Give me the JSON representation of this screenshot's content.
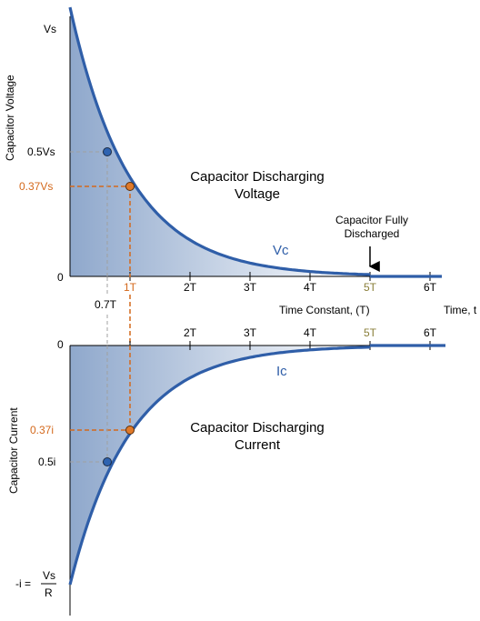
{
  "colors": {
    "curve": "#2f5ea8",
    "fill_dark": "#8fa8cc",
    "fill_light": "#ffffff",
    "highlight": "#d4691c",
    "guide_gray": "#a0a0a0",
    "five_t": "#8a7f3a",
    "dot_blue": "#2e63b0"
  },
  "voltage": {
    "y_axis_label": "Capacitor Voltage",
    "y_top_label": "Vs",
    "y_half_label": "0.5Vs",
    "y_37_label": "0.37Vs",
    "y_zero_label": "0",
    "title_line1": "Capacitor Discharging",
    "title_line2": "Voltage",
    "curve_label": "Vc",
    "annotation_line1": "Capacitor Fully",
    "annotation_line2": "Discharged",
    "ticks": [
      "1T",
      "2T",
      "3T",
      "4T",
      "5T",
      "6T"
    ],
    "label_07": "0.7T",
    "x_axis_label": "Time Constant, (T)",
    "time_label": "Time, t"
  },
  "current": {
    "y_axis_label": "Capacitor Current",
    "y_zero_label": "0",
    "y_37_label": "0.37i",
    "y_half_label": "0.5i",
    "title_line1": "Capacitor Discharging",
    "title_line2": "Current",
    "curve_label": "Ic",
    "ticks": [
      "2T",
      "3T",
      "4T",
      "5T",
      "6T"
    ],
    "bottom_prefix": "-i =",
    "bottom_num": "Vs",
    "bottom_den": "R"
  }
}
